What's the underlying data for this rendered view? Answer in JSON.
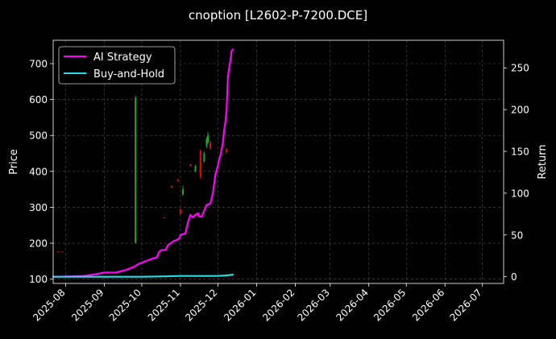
{
  "chart_data": {
    "type": "line",
    "title": "cnoption [L2602-P-7200.DCE]",
    "ylabel": "Price",
    "y2label": "Return",
    "xlabel": "",
    "ylim": [
      88,
      765
    ],
    "y2lim": [
      -8,
      283
    ],
    "xlim": [
      "2025-07-22",
      "2026-07-18"
    ],
    "grid": true,
    "legend_position": "top-left",
    "x_ticks": [
      "2025-08",
      "2025-09",
      "2025-10",
      "2025-11",
      "2025-12",
      "2026-01",
      "2026-02",
      "2026-03",
      "2026-04",
      "2026-05",
      "2026-06",
      "2026-07"
    ],
    "y_ticks": [
      100,
      200,
      300,
      400,
      500,
      600,
      700
    ],
    "y2_ticks": [
      0,
      50,
      100,
      150,
      200,
      250
    ],
    "series": [
      {
        "name": "AI Strategy",
        "color": "#ff00ff",
        "axis": "right",
        "points": [
          [
            "2025-07-22",
            0
          ],
          [
            "2025-08-05",
            0.5
          ],
          [
            "2025-08-15",
            1
          ],
          [
            "2025-08-25",
            3
          ],
          [
            "2025-09-01",
            5
          ],
          [
            "2025-09-10",
            5
          ],
          [
            "2025-09-18",
            8
          ],
          [
            "2025-09-25",
            12
          ],
          [
            "2025-09-28",
            15
          ],
          [
            "2025-10-03",
            18
          ],
          [
            "2025-10-10",
            22
          ],
          [
            "2025-10-13",
            23
          ],
          [
            "2025-10-15",
            30
          ],
          [
            "2025-10-17",
            32
          ],
          [
            "2025-10-20",
            32
          ],
          [
            "2025-10-22",
            38
          ],
          [
            "2025-10-25",
            41
          ],
          [
            "2025-10-27",
            43
          ],
          [
            "2025-10-29",
            44
          ],
          [
            "2025-10-31",
            46
          ],
          [
            "2025-11-01",
            50
          ],
          [
            "2025-11-05",
            52
          ],
          [
            "2025-11-07",
            65
          ],
          [
            "2025-11-09",
            74
          ],
          [
            "2025-11-11",
            71
          ],
          [
            "2025-11-13",
            74
          ],
          [
            "2025-11-15",
            76
          ],
          [
            "2025-11-16",
            72
          ],
          [
            "2025-11-18",
            72
          ],
          [
            "2025-11-20",
            79
          ],
          [
            "2025-11-22",
            86
          ],
          [
            "2025-11-24",
            87
          ],
          [
            "2025-11-25",
            88
          ],
          [
            "2025-11-27",
            100
          ],
          [
            "2025-11-29",
            122
          ],
          [
            "2025-12-01",
            133
          ],
          [
            "2025-12-02",
            140
          ],
          [
            "2025-12-03",
            145
          ],
          [
            "2025-12-05",
            160
          ],
          [
            "2025-12-06",
            175
          ],
          [
            "2025-12-07",
            185
          ],
          [
            "2025-12-08",
            200
          ],
          [
            "2025-12-09",
            238
          ],
          [
            "2025-12-10",
            250
          ],
          [
            "2025-12-11",
            258
          ],
          [
            "2025-12-12",
            270
          ],
          [
            "2025-12-13",
            272
          ]
        ]
      },
      {
        "name": "Buy-and-Hold",
        "color": "#22dde6",
        "axis": "right",
        "points": [
          [
            "2025-07-22",
            0
          ],
          [
            "2025-09-01",
            0
          ],
          [
            "2025-10-01",
            0
          ],
          [
            "2025-10-20",
            0.5
          ],
          [
            "2025-11-01",
            1
          ],
          [
            "2025-11-15",
            1
          ],
          [
            "2025-12-01",
            1
          ],
          [
            "2025-12-07",
            1.5
          ],
          [
            "2025-12-13",
            2.5
          ]
        ]
      }
    ],
    "price_bars": [
      {
        "date": "2025-07-26",
        "open": 178,
        "close": 176,
        "high": 178,
        "low": 176
      },
      {
        "date": "2025-07-29",
        "open": 177,
        "close": 175,
        "high": 177,
        "low": 175
      },
      {
        "date": "2025-09-26",
        "open": 200,
        "close": 605,
        "high": 610,
        "low": 200
      },
      {
        "date": "2025-10-19",
        "open": 272,
        "close": 270,
        "high": 272,
        "low": 270
      },
      {
        "date": "2025-10-25",
        "open": 360,
        "close": 355,
        "high": 360,
        "low": 355
      },
      {
        "date": "2025-10-30",
        "open": 378,
        "close": 372,
        "high": 378,
        "low": 372
      },
      {
        "date": "2025-11-01",
        "open": 295,
        "close": 282,
        "high": 297,
        "low": 280
      },
      {
        "date": "2025-11-03",
        "open": 335,
        "close": 350,
        "high": 360,
        "low": 333
      },
      {
        "date": "2025-11-09",
        "open": 420,
        "close": 415,
        "high": 420,
        "low": 415
      },
      {
        "date": "2025-11-13",
        "open": 400,
        "close": 415,
        "high": 418,
        "low": 398
      },
      {
        "date": "2025-11-17",
        "open": 458,
        "close": 385,
        "high": 460,
        "low": 380
      },
      {
        "date": "2025-11-20",
        "open": 428,
        "close": 450,
        "high": 455,
        "low": 425
      },
      {
        "date": "2025-11-22",
        "open": 470,
        "close": 490,
        "high": 495,
        "low": 465
      },
      {
        "date": "2025-11-23",
        "open": 480,
        "close": 500,
        "high": 510,
        "low": 478
      },
      {
        "date": "2025-11-25",
        "open": 480,
        "close": 465,
        "high": 485,
        "low": 460
      },
      {
        "date": "2025-12-08",
        "open": 462,
        "close": 453,
        "high": 465,
        "low": 450
      }
    ]
  }
}
